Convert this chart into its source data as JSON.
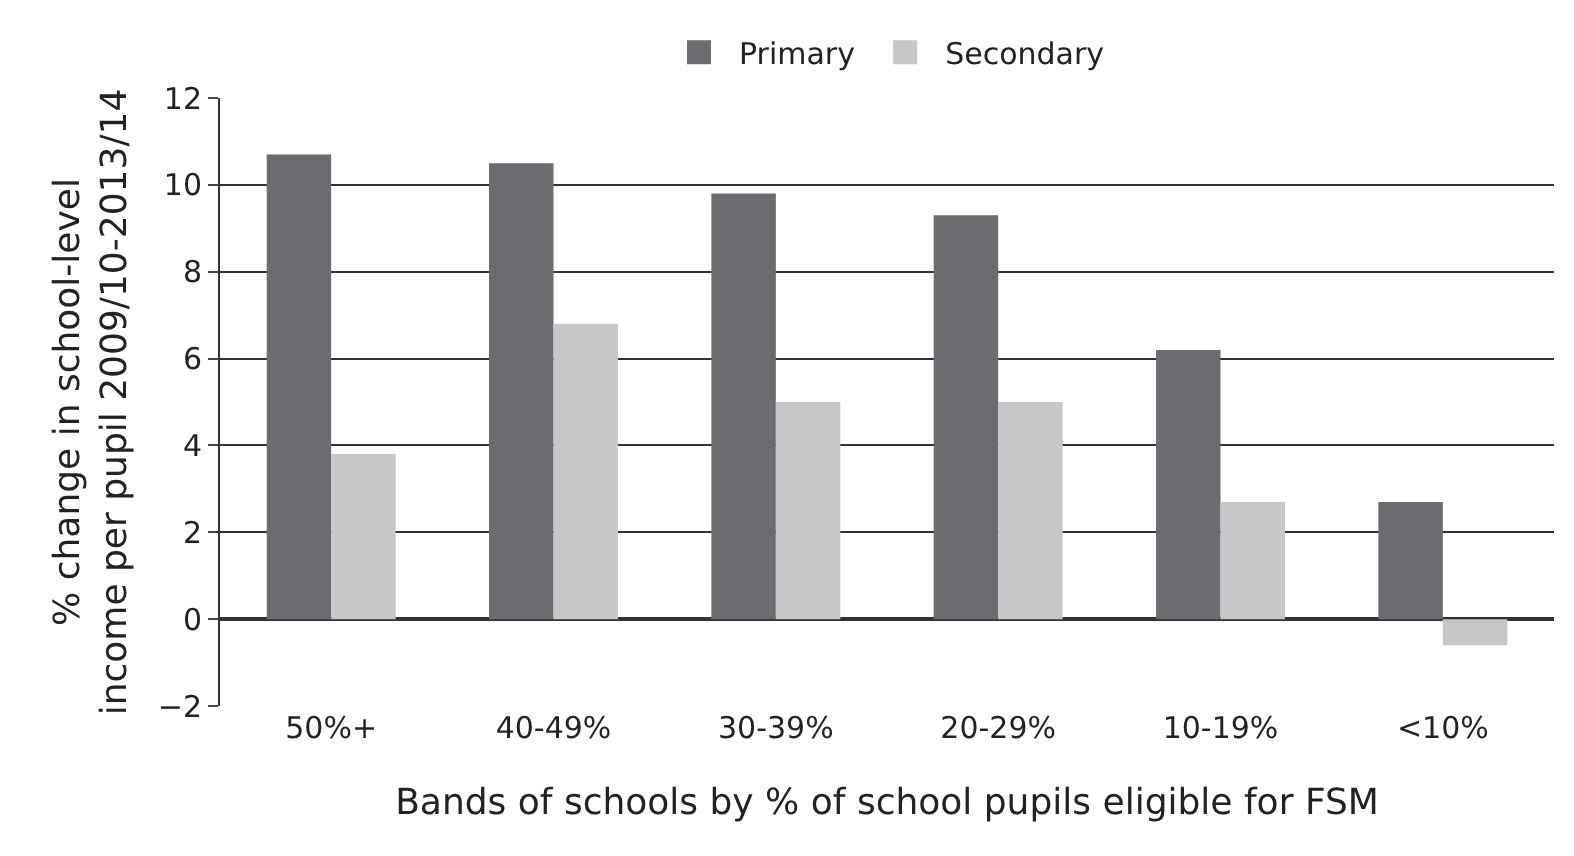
{
  "chart_data": {
    "type": "bar",
    "xlabel": "Bands of schools by % of school pupils eligible for FSM",
    "ylabel": "% change in school-level\nincome per pupil 2009/10-2013/14",
    "categories": [
      "50%+",
      "40-49%",
      "30-39%",
      "20-29%",
      "10-19%",
      "<10%"
    ],
    "series": [
      {
        "name": "Primary",
        "color": "#6b6c70",
        "values": [
          10.7,
          10.5,
          9.8,
          9.3,
          6.2,
          2.7
        ]
      },
      {
        "name": "Secondary",
        "color": "#c6c7c9",
        "values": [
          3.8,
          6.8,
          5.0,
          5.0,
          2.7,
          -0.6
        ]
      }
    ],
    "ylim": [
      -2,
      12
    ],
    "yticks": [
      {
        "value": -2,
        "label": "−2"
      },
      0,
      2,
      4,
      6,
      8,
      10,
      12
    ],
    "grid": "y",
    "legend": "top"
  }
}
